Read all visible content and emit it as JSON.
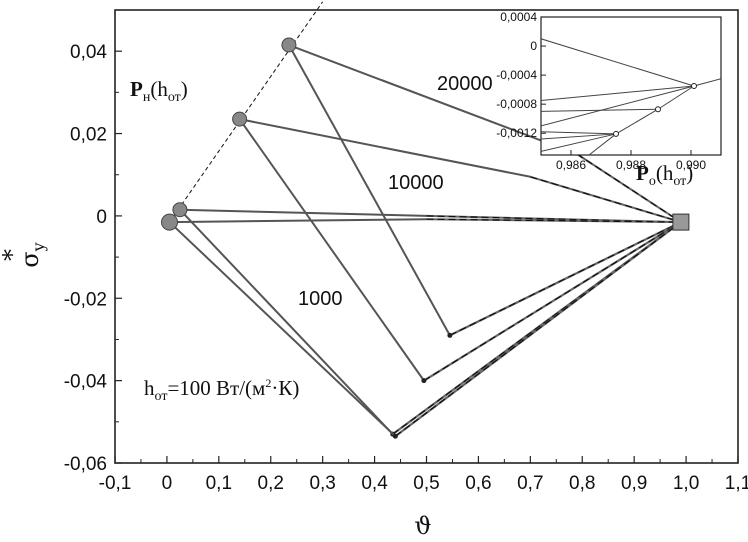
{
  "chart_data": {
    "type": "line",
    "xlabel": "ϑ",
    "ylabel": "σ",
    "ylabel_superscript": "*",
    "ylabel_subscript": "y",
    "xlim": [
      -0.1,
      1.1
    ],
    "ylim": [
      -0.06,
      0.05
    ],
    "xticks": [
      "-0,1",
      "0",
      "0,1",
      "0,2",
      "0,3",
      "0,4",
      "0,5",
      "0,6",
      "0,7",
      "0,8",
      "0,9",
      "1,0",
      "1,1"
    ],
    "yticks": [
      "0,04",
      "0,02",
      "0",
      "-0,02",
      "-0,04",
      "-0,06"
    ],
    "ytick_values": [
      0.04,
      0.02,
      0,
      -0.02,
      -0.04,
      -0.06
    ],
    "labels": {
      "c20000": "20000",
      "c10000": "10000",
      "c1000": "1000",
      "c100_prefix": "h",
      "c100_sub": "от",
      "c100_rest": "=100 Вт/(м",
      "c100_sup": "2",
      "c100_end": "·К)",
      "pn_main": "P",
      "pn_sub": "н",
      "pn_paren": "(h",
      "pn_sub2": "от",
      "pn_close": ")",
      "po_main": "P",
      "po_sub": "о",
      "po_paren": "(h",
      "po_sub2": "от",
      "po_close": ")"
    },
    "endpoint": {
      "x": 0.99,
      "y": -0.0015
    },
    "series": [
      {
        "name": "20000",
        "start": [
          0.235,
          0.0415
        ],
        "trip": [
          0.545,
          -0.029
        ],
        "top": [
          [
            0.235,
            0.0415
          ],
          [
            0.79,
            0.015
          ],
          [
            0.99,
            -0.0015
          ]
        ]
      },
      {
        "name": "10000",
        "start": [
          0.14,
          0.0235
        ],
        "trip": [
          0.495,
          -0.04
        ],
        "top": [
          [
            0.14,
            0.0235
          ],
          [
            0.7,
            0.0095
          ],
          [
            0.99,
            -0.0015
          ]
        ]
      },
      {
        "name": "1000",
        "start": [
          0.025,
          0.0015
        ],
        "trip": [
          0.435,
          -0.053
        ],
        "top": [
          [
            0.025,
            0.0015
          ],
          [
            0.5,
            0.0
          ],
          [
            0.99,
            -0.0015
          ]
        ]
      },
      {
        "name": "100",
        "start": [
          0.005,
          -0.0015
        ],
        "trip": [
          0.44,
          -0.0535
        ],
        "top": [
          [
            0.005,
            -0.0015
          ],
          [
            0.5,
            -0.0008
          ],
          [
            0.99,
            -0.0015
          ]
        ]
      }
    ],
    "pn_line": [
      [
        0.005,
        -0.0015
      ],
      [
        0.3,
        0.052
      ]
    ],
    "inset": {
      "xlim": [
        0.985,
        0.991
      ],
      "ylim": [
        -0.0015,
        0.0004
      ],
      "xticks": [
        "0,986",
        "0,988",
        "0,990"
      ],
      "xtick_values": [
        0.986,
        0.988,
        0.99
      ],
      "yticks": [
        "0,0004",
        "0",
        "-0,0004",
        "-0,0008",
        "-0,0012"
      ],
      "ytick_values": [
        0.0004,
        0,
        -0.0004,
        -0.0008,
        -0.0012
      ],
      "points": [
        [
          0.9901,
          -0.00055
        ],
        [
          0.9889,
          -0.00087
        ],
        [
          0.9875,
          -0.00121
        ]
      ]
    }
  }
}
